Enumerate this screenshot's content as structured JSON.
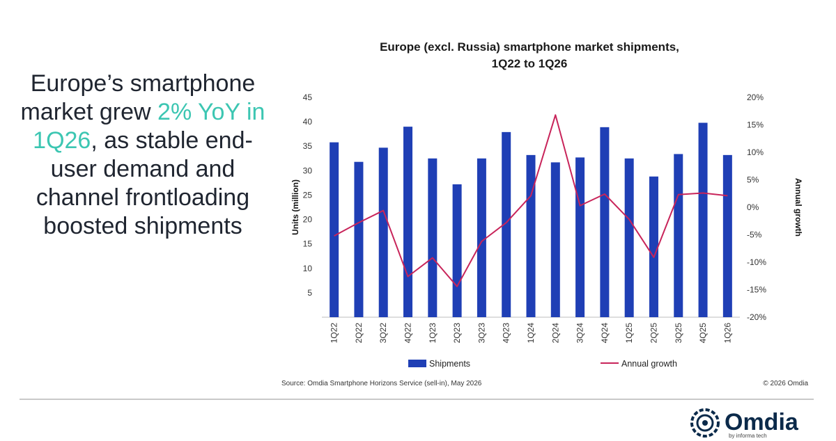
{
  "headline": {
    "part1": "Europe’s smartphone market grew ",
    "accent": "2% YoY in 1Q26",
    "part2": ", as stable end-user demand and channel frontloading boosted shipments"
  },
  "colors": {
    "bars": "#1f3fb5",
    "line": "#c8245a",
    "accent": "#3cc6b2",
    "logo": "#0b2a4a"
  },
  "chart_data": {
    "type": "bar",
    "title": "Europe (excl. Russia) smartphone market shipments, 1Q22 to 1Q26",
    "title_line1": "Europe (excl. Russia) smartphone market shipments,",
    "title_line2": "1Q22 to 1Q26",
    "categories": [
      "1Q22",
      "2Q22",
      "3Q22",
      "4Q22",
      "1Q23",
      "2Q23",
      "3Q23",
      "4Q23",
      "1Q24",
      "2Q24",
      "3Q24",
      "4Q24",
      "1Q25",
      "2Q25",
      "3Q25",
      "4Q25",
      "1Q26"
    ],
    "series": [
      {
        "name": "Shipments",
        "type": "bar",
        "axis": "left",
        "values": [
          35.8,
          31.8,
          34.7,
          39.0,
          32.5,
          27.2,
          32.5,
          37.9,
          33.2,
          31.7,
          32.7,
          38.9,
          32.5,
          28.8,
          33.4,
          39.8,
          33.2
        ]
      },
      {
        "name": "Annual growth",
        "type": "line",
        "axis": "right",
        "unit": "%",
        "values": [
          -5.2,
          -2.8,
          -0.6,
          -12.6,
          -9.2,
          -14.4,
          -6.2,
          -2.8,
          2.1,
          16.8,
          0.3,
          2.4,
          -2.2,
          -9.1,
          2.3,
          2.6,
          2.1
        ]
      }
    ],
    "ylabel": "Units (million)",
    "y2label": "Annual growth",
    "ylim": [
      0,
      45
    ],
    "y2lim": [
      -20,
      20
    ],
    "yticks": [
      "5",
      "10",
      "15",
      "20",
      "25",
      "30",
      "35",
      "40",
      "45"
    ],
    "y2ticks": [
      "-20%",
      "-15%",
      "-10%",
      "-5%",
      "0%",
      "5%",
      "10%",
      "15%",
      "20%"
    ],
    "legend": {
      "placement": "bottom",
      "items": [
        "Shipments",
        "Annual growth"
      ]
    },
    "grid": false
  },
  "source": "Source: Omdia Smartphone Horizons Service (sell-in), May 2026",
  "copyright": "© 2026 Omdia",
  "logo": {
    "name": "Omdia",
    "tagline": "by informa tech"
  }
}
